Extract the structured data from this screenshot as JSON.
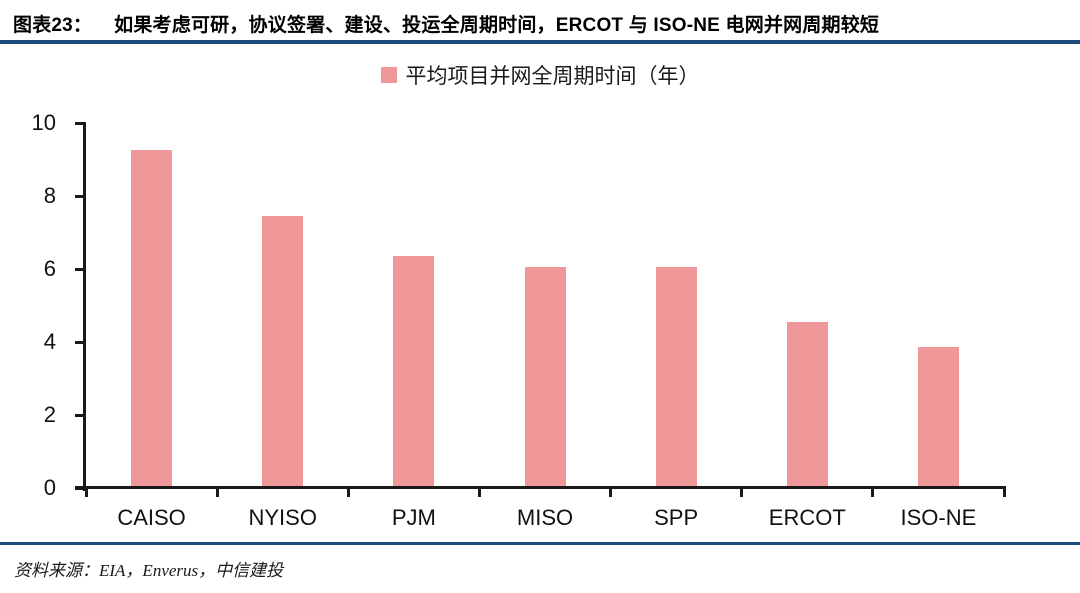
{
  "header": {
    "figure_label": "图表23：",
    "title": "如果考虑可研，协议签署、建设、投运全周期时间，ERCOT 与 ISO-NE 电网并网周期较短"
  },
  "chart_data": {
    "type": "bar",
    "title": "",
    "legend": "平均项目并网全周期时间（年）",
    "legend_position": "top-center",
    "categories": [
      "CAISO",
      "NYISO",
      "PJM",
      "MISO",
      "SPP",
      "ERCOT",
      "ISO-NE"
    ],
    "values": [
      9.2,
      7.4,
      6.3,
      6.0,
      6.0,
      4.5,
      3.8
    ],
    "xlabel": "",
    "ylabel": "",
    "ylim": [
      0,
      10
    ],
    "ytick_step": 2,
    "yticks": [
      0,
      2,
      4,
      6,
      8,
      10
    ],
    "grid": false,
    "bar_color": "#F09899"
  },
  "footer": {
    "source": "资料来源：EIA，Enverus，中信建投"
  },
  "colors": {
    "rule": "#1C4B7C",
    "bar": "#F09899",
    "axis": "#1a1a1a",
    "text": "#000000"
  }
}
